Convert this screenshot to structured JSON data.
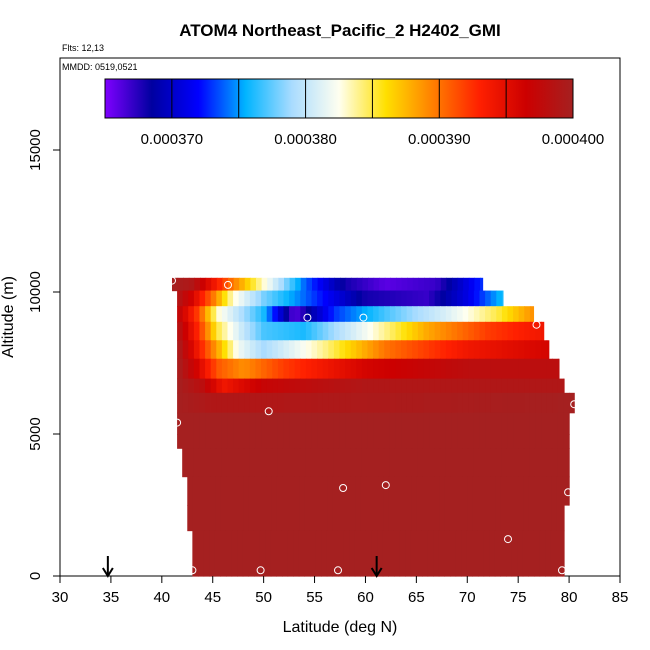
{
  "chart_data": {
    "type": "heatmap",
    "title": "ATOM4 Northeast_Pacific_2 H2402_GMI",
    "flights_label": "Flts: 12,13",
    "dates_label": "MMDD: 0519,0521",
    "xlabel": "Latitude (deg N)",
    "ylabel": "Altitude (m)",
    "xlim": [
      30,
      85
    ],
    "ylim": [
      0,
      17500
    ],
    "xticks": [
      "30",
      "35",
      "40",
      "45",
      "50",
      "55",
      "60",
      "65",
      "70",
      "75",
      "80",
      "85"
    ],
    "yticks": [
      "0",
      "5000",
      "10000",
      "15000"
    ],
    "colorbar": {
      "min": 0.000365,
      "max": 0.0004,
      "tick_labels": [
        "0.000370",
        "0.000380",
        "0.000390",
        "0.000400"
      ],
      "tick_values": [
        0.00037,
        0.00038,
        0.00039,
        0.0004
      ],
      "colors": [
        "#7f00ff",
        "#0000a0",
        "#0000ff",
        "#00b4ff",
        "#aadcff",
        "#fffff0",
        "#ffe000",
        "#ff8000",
        "#ff2000",
        "#cc0000",
        "#a52020"
      ]
    },
    "z_layers": [
      {
        "alt_range": [
          10050,
          10500
        ],
        "lat_range": [
          41,
          71.5
        ],
        "value_stops": [
          [
            41,
            0.0004
          ],
          [
            43,
            0.000399
          ],
          [
            46,
            0.000392
          ],
          [
            50,
            0.000383
          ],
          [
            54,
            0.000374
          ],
          [
            58,
            0.000368
          ],
          [
            62,
            0.000366
          ],
          [
            67,
            0.000367
          ],
          [
            71.5,
            0.000373
          ]
        ]
      },
      {
        "alt_range": [
          9500,
          10050
        ],
        "lat_range": [
          41.5,
          73.5
        ],
        "value_stops": [
          [
            41.5,
            0.000399
          ],
          [
            43,
            0.000396
          ],
          [
            45,
            0.00039
          ],
          [
            47,
            0.000383
          ],
          [
            50,
            0.000378
          ],
          [
            55,
            0.000373
          ],
          [
            60,
            0.000368
          ],
          [
            66,
            0.000367
          ],
          [
            70,
            0.000371
          ],
          [
            73.5,
            0.000376
          ]
        ]
      },
      {
        "alt_range": [
          8950,
          9500
        ],
        "lat_range": [
          41.5,
          76.5
        ],
        "value_stops": [
          [
            41.5,
            0.000398
          ],
          [
            43.5,
            0.000392
          ],
          [
            45.5,
            0.000383
          ],
          [
            48,
            0.000379
          ],
          [
            50,
            0.000376
          ],
          [
            53,
            0.000366
          ],
          [
            57,
            0.000373
          ],
          [
            62,
            0.000377
          ],
          [
            68,
            0.000381
          ],
          [
            73,
            0.000385
          ],
          [
            76.5,
            0.000389
          ]
        ]
      },
      {
        "alt_range": [
          8300,
          8950
        ],
        "lat_range": [
          41.5,
          77.5
        ],
        "value_stops": [
          [
            41.5,
            0.000399
          ],
          [
            43.5,
            0.000393
          ],
          [
            45.5,
            0.000385
          ],
          [
            48,
            0.00038
          ],
          [
            50,
            0.000377
          ],
          [
            54,
            0.000376
          ],
          [
            60,
            0.000382
          ],
          [
            66,
            0.000388
          ],
          [
            72,
            0.000392
          ],
          [
            77.5,
            0.000394
          ]
        ]
      },
      {
        "alt_range": [
          7650,
          8300
        ],
        "lat_range": [
          41.5,
          78
        ],
        "value_stops": [
          [
            41.5,
            0.0004
          ],
          [
            43.5,
            0.000394
          ],
          [
            45.5,
            0.000388
          ],
          [
            47.5,
            0.000382
          ],
          [
            50,
            0.000379
          ],
          [
            56,
            0.000384
          ],
          [
            62,
            0.00039
          ],
          [
            70,
            0.000394
          ],
          [
            78,
            0.000396
          ]
        ]
      },
      {
        "alt_range": [
          6950,
          7650
        ],
        "lat_range": [
          41.5,
          79
        ],
        "value_stops": [
          [
            41.5,
            0.0004
          ],
          [
            43.5,
            0.000396
          ],
          [
            45.5,
            0.000391
          ],
          [
            48,
            0.000389
          ],
          [
            52,
            0.000392
          ],
          [
            60,
            0.000396
          ],
          [
            70,
            0.000398
          ],
          [
            79,
            0.000398
          ]
        ]
      },
      {
        "alt_range": [
          6450,
          6950
        ],
        "lat_range": [
          41.5,
          79.5
        ],
        "value_stops": [
          [
            41.5,
            0.0004
          ],
          [
            44,
            0.000398
          ],
          [
            46,
            0.000394
          ],
          [
            50,
            0.000397
          ],
          [
            60,
            0.000399
          ],
          [
            79.5,
            0.000399
          ]
        ]
      },
      {
        "alt_range": [
          5750,
          6450
        ],
        "lat_range": [
          41.5,
          80.5
        ],
        "value_stops": [
          [
            41.5,
            0.0004
          ],
          [
            45,
            0.000399
          ],
          [
            50,
            0.000399
          ],
          [
            80.5,
            0.0004
          ]
        ]
      },
      {
        "alt_range": [
          5000,
          5750
        ],
        "lat_range": [
          41.5,
          80
        ],
        "value_stops": [
          [
            41.5,
            0.0004
          ],
          [
            80,
            0.0004
          ]
        ]
      },
      {
        "alt_range": [
          4500,
          5000
        ],
        "lat_range": [
          41.5,
          80
        ],
        "value_stops": [
          [
            41.5,
            0.000401
          ],
          [
            80,
            0.000401
          ]
        ]
      },
      {
        "alt_range": [
          3500,
          4500
        ],
        "lat_range": [
          42,
          80
        ],
        "value_stops": [
          [
            42,
            0.000401
          ],
          [
            80,
            0.000401
          ]
        ]
      },
      {
        "alt_range": [
          2500,
          3500
        ],
        "lat_range": [
          42.5,
          80
        ],
        "value_stops": [
          [
            42.5,
            0.000401
          ],
          [
            80,
            0.000401
          ]
        ]
      },
      {
        "alt_range": [
          1600,
          2500
        ],
        "lat_range": [
          42.5,
          79.5
        ],
        "value_stops": [
          [
            42.5,
            0.000401
          ],
          [
            79.5,
            0.000401
          ]
        ]
      },
      {
        "alt_range": [
          0,
          1600
        ],
        "lat_range": [
          43,
          79.5
        ],
        "value_stops": [
          [
            43,
            0.000401
          ],
          [
            79.5,
            0.000401
          ]
        ]
      }
    ],
    "points": [
      {
        "lat": 41.0,
        "alt": 10400
      },
      {
        "lat": 46.5,
        "alt": 10250
      },
      {
        "lat": 69.8,
        "alt": 10750
      },
      {
        "lat": 54.3,
        "alt": 9100
      },
      {
        "lat": 59.8,
        "alt": 9100
      },
      {
        "lat": 76.8,
        "alt": 8850
      },
      {
        "lat": 80.5,
        "alt": 6050
      },
      {
        "lat": 50.5,
        "alt": 5800
      },
      {
        "lat": 41.5,
        "alt": 5400
      },
      {
        "lat": 57.8,
        "alt": 3100
      },
      {
        "lat": 62.0,
        "alt": 3200
      },
      {
        "lat": 79.9,
        "alt": 2950
      },
      {
        "lat": 74.0,
        "alt": 1300
      },
      {
        "lat": 43.0,
        "alt": 200
      },
      {
        "lat": 49.7,
        "alt": 200
      },
      {
        "lat": 57.3,
        "alt": 200
      },
      {
        "lat": 79.3,
        "alt": 200
      }
    ],
    "arrows_lat": [
      34.7,
      61.1
    ],
    "grid": false,
    "legend": "none"
  }
}
